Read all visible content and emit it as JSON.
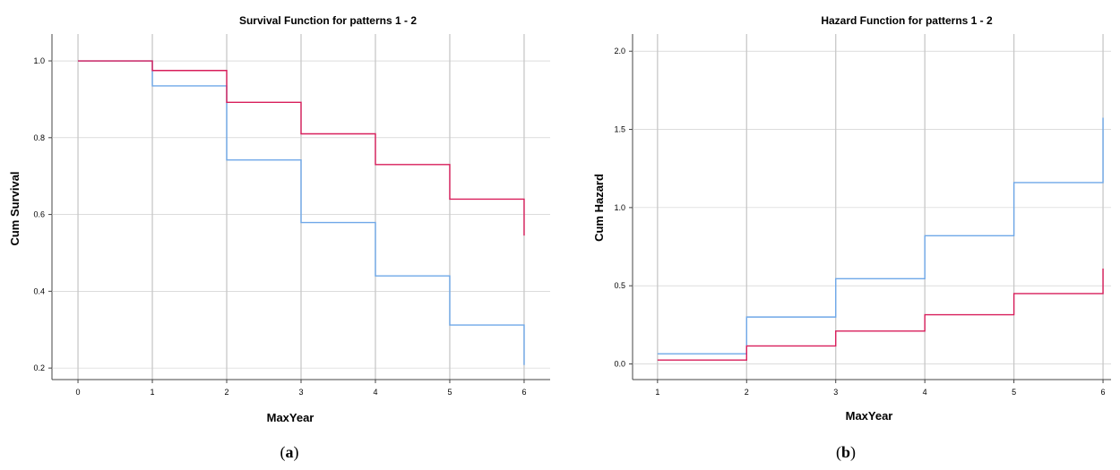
{
  "chart_data": [
    {
      "type": "line",
      "step": true,
      "title": "Survival Function for patterns 1 - 2",
      "xlabel": "MaxYear",
      "ylabel": "Cum Survival",
      "xlim": [
        -0.35,
        6.35
      ],
      "ylim": [
        0.17,
        1.07
      ],
      "xticks": [
        0,
        1,
        2,
        3,
        4,
        5,
        6
      ],
      "xtick_labels": [
        "0",
        "1",
        "2",
        "3",
        "4",
        "5",
        "6"
      ],
      "yticks": [
        0.2,
        0.4,
        0.6,
        0.8,
        1.0
      ],
      "ytick_labels": [
        "0.2",
        "0.4",
        "0.6",
        "0.8",
        "1.0"
      ],
      "grid": "vertical",
      "caption": "a",
      "series": [
        {
          "color": "#6fa8e8",
          "x": [
            0,
            1,
            2,
            3,
            4,
            5,
            6
          ],
          "y": [
            1.0,
            0.935,
            0.742,
            0.579,
            0.44,
            0.312,
            0.208
          ]
        },
        {
          "color": "#d81e5b",
          "x": [
            0,
            1,
            2,
            3,
            4,
            5,
            6
          ],
          "y": [
            1.0,
            0.975,
            0.892,
            0.81,
            0.73,
            0.64,
            0.545
          ]
        }
      ]
    },
    {
      "type": "line",
      "step": true,
      "title": "Hazard Function for patterns 1 - 2",
      "xlabel": "MaxYear",
      "ylabel": "Cum Hazard",
      "xlim": [
        0.72,
        6.09
      ],
      "ylim": [
        -0.1,
        2.11
      ],
      "xticks": [
        1,
        2,
        3,
        4,
        5,
        6
      ],
      "xtick_labels": [
        "1",
        "2",
        "3",
        "4",
        "5",
        "6"
      ],
      "yticks": [
        0.0,
        0.5,
        1.0,
        1.5,
        2.0
      ],
      "ytick_labels": [
        "0.0",
        "0.5",
        "1.0",
        "1.5",
        "2.0"
      ],
      "grid": "vertical",
      "caption": "b",
      "series": [
        {
          "color": "#6fa8e8",
          "x": [
            1,
            2,
            3,
            4,
            5,
            6
          ],
          "y": [
            0.065,
            0.3,
            0.545,
            0.82,
            1.16,
            1.575
          ]
        },
        {
          "color": "#d81e5b",
          "x": [
            1,
            2,
            3,
            4,
            5,
            6
          ],
          "y": [
            0.025,
            0.115,
            0.21,
            0.315,
            0.45,
            0.61
          ]
        }
      ]
    }
  ]
}
